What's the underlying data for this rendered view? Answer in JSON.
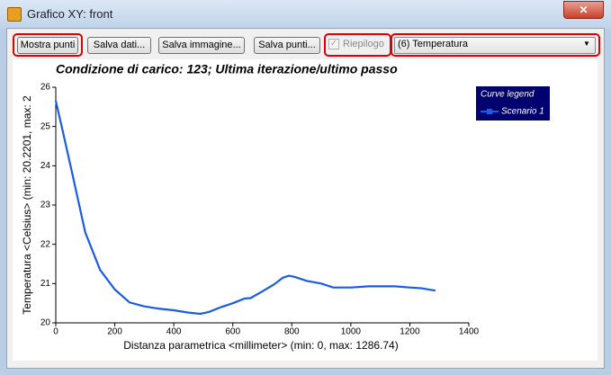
{
  "window": {
    "title": "Grafico XY: front"
  },
  "toolbar": {
    "buttons": [
      "Mostra punti",
      "Salva dati...",
      "Salva immagine...",
      "Salva punti..."
    ],
    "checkbox": "Riepilogo",
    "dropdown": "(6) Temperatura"
  },
  "chart_data": {
    "type": "line",
    "title": "Condizione di carico: 123; Ultima iterazione/ultimo passo",
    "x_label": "Distanza parametrica <millimeter> (min: 0, max: 1286.74)",
    "y_label": "Temperatura <Celsius> (min: 20.2201, max: 2",
    "legend_title": "Curve legend",
    "x": [
      0,
      20,
      50,
      100,
      150,
      200,
      250,
      300,
      350,
      400,
      450,
      490,
      520,
      560,
      600,
      640,
      660,
      700,
      740,
      770,
      790,
      810,
      850,
      900,
      940,
      1000,
      1060,
      1100,
      1150,
      1200,
      1240,
      1286.74
    ],
    "series": [
      {
        "name": "Scenario 1",
        "color": "#1a5ce6",
        "values": [
          25.65,
          25.0,
          24.0,
          22.3,
          21.35,
          20.85,
          20.52,
          20.42,
          20.36,
          20.32,
          20.26,
          20.23,
          20.28,
          20.4,
          20.5,
          20.62,
          20.63,
          20.8,
          20.98,
          21.15,
          21.2,
          21.17,
          21.07,
          21.0,
          20.9,
          20.9,
          20.93,
          20.93,
          20.93,
          20.9,
          20.88,
          20.82
        ]
      }
    ],
    "xlim": [
      0,
      1400
    ],
    "ylim": [
      20,
      26
    ],
    "xticks": [
      0,
      200,
      400,
      600,
      800,
      1000,
      1200,
      1400
    ],
    "yticks": [
      20,
      21,
      22,
      23,
      24,
      25,
      26
    ]
  }
}
